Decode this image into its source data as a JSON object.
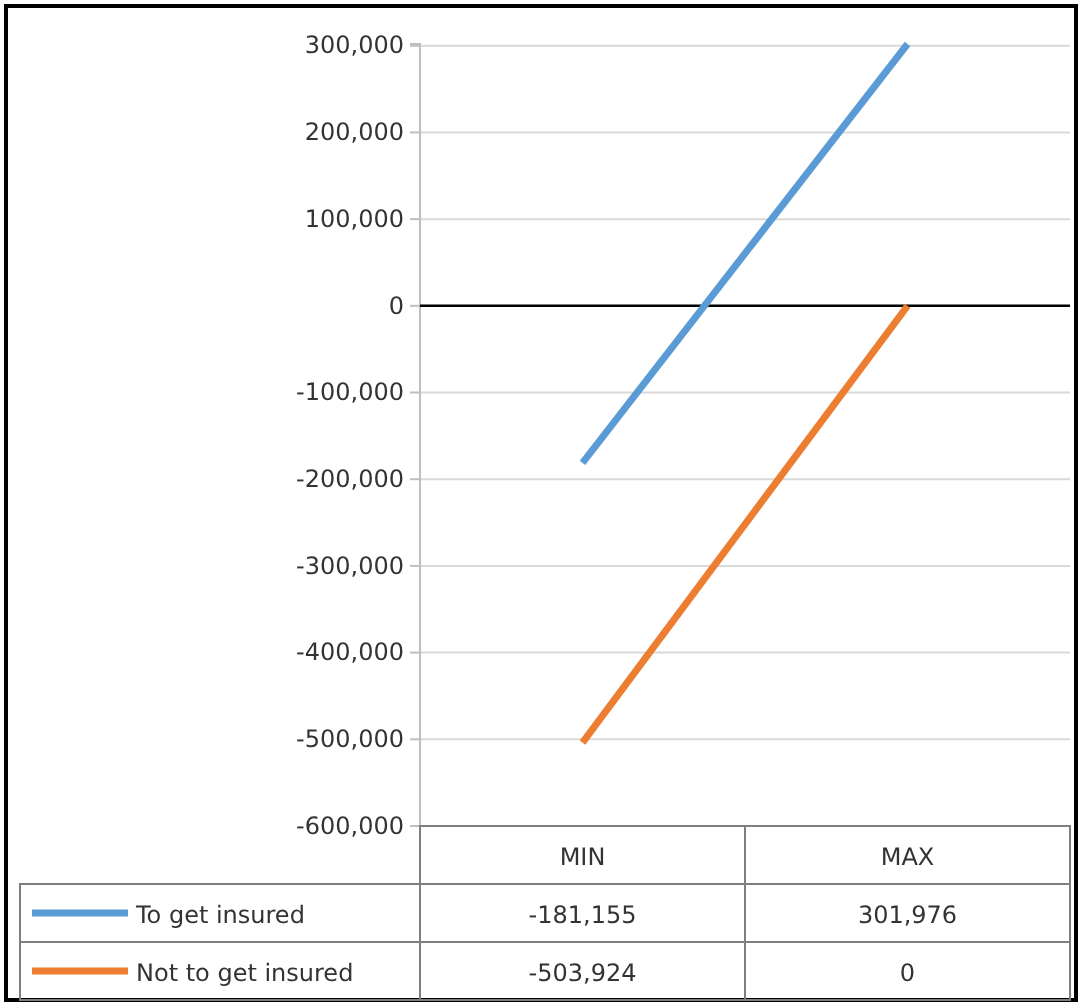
{
  "chart_data": {
    "type": "line",
    "categories": [
      "MIN",
      "MAX"
    ],
    "series": [
      {
        "name": "To get insured",
        "color": "#5b9bd5",
        "values": [
          -181155,
          301976
        ],
        "value_labels": [
          "-181,155",
          "301,976"
        ]
      },
      {
        "name": "Not to get insured",
        "color": "#ed7d31",
        "values": [
          -503924,
          0
        ],
        "value_labels": [
          "-503,924",
          "0"
        ]
      }
    ],
    "ylim": [
      -600000,
      302000
    ],
    "yticks": [
      {
        "value": -600000,
        "label": "-600,000"
      },
      {
        "value": -500000,
        "label": "-500,000"
      },
      {
        "value": -400000,
        "label": "-400,000"
      },
      {
        "value": -300000,
        "label": "-300,000"
      },
      {
        "value": -200000,
        "label": "-200,000"
      },
      {
        "value": -100000,
        "label": "-100,000"
      },
      0,
      {
        "value": 100000,
        "label": "100,000"
      },
      {
        "value": 200000,
        "label": "200,000"
      },
      {
        "value": 300000,
        "label": "300,000"
      }
    ],
    "grid": "y",
    "legend": "bottom",
    "marker": "none",
    "line_style": "solid"
  }
}
